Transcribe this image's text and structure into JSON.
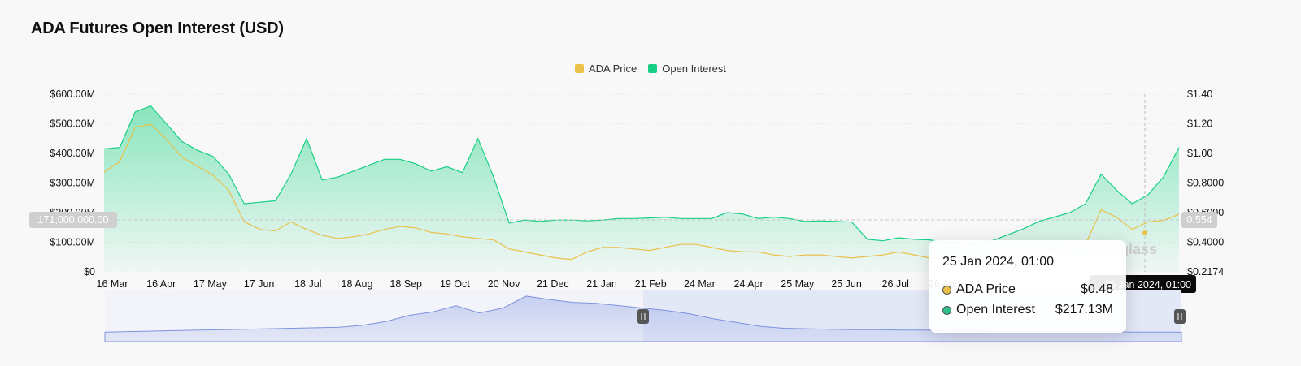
{
  "title": "ADA Futures Open Interest (USD)",
  "legend": [
    {
      "label": "ADA Price",
      "color": "#e9c14b"
    },
    {
      "label": "Open Interest",
      "color": "#19cf85"
    }
  ],
  "crosshair": {
    "left_label": "171,000,000.00",
    "right_label": "0.554",
    "x_label": "25 Jan 2024, 01:00"
  },
  "tooltip": {
    "date": "25 Jan 2024, 01:00",
    "rows": [
      {
        "label": "ADA Price",
        "value": "$0.48",
        "color": "#e9c14b"
      },
      {
        "label": "Open Interest",
        "value": "$217.13M",
        "color": "#2fc08a"
      }
    ]
  },
  "watermark": "coinglass",
  "chart_data": {
    "type": "area",
    "title": "ADA Futures Open Interest (USD)",
    "x_ticks": [
      "16 Mar",
      "16 Apr",
      "17 May",
      "17 Jun",
      "18 Jul",
      "18 Aug",
      "18 Sep",
      "19 Oct",
      "20 Nov",
      "21 Dec",
      "21 Jan",
      "21 Feb",
      "24 Mar",
      "24 Apr",
      "25 May",
      "25 Jun",
      "26 Jul",
      "26 Aug",
      "",
      "",
      "",
      ""
    ],
    "y_left": {
      "ticks": [
        "$0",
        "$100.00M",
        "$200.00M",
        "$300.00M",
        "$400.00M",
        "$500.00M",
        "$600.00M"
      ],
      "range": [
        0,
        600000000
      ]
    },
    "y_right": {
      "ticks": [
        "$0.2174",
        "$0.4000",
        "$0.6000",
        "$0.8000",
        "$1.00",
        "$1.20",
        "$1.40"
      ],
      "range": [
        0.2174,
        1.4
      ]
    },
    "series": [
      {
        "name": "Open Interest",
        "axis": "left",
        "unit": "USD millions",
        "color": "#19cf85",
        "values": [
          415,
          420,
          540,
          560,
          500,
          440,
          410,
          390,
          330,
          230,
          235,
          240,
          330,
          450,
          310,
          320,
          340,
          360,
          380,
          380,
          365,
          340,
          355,
          335,
          450,
          320,
          165,
          175,
          170,
          175,
          175,
          172,
          175,
          180,
          180,
          182,
          185,
          180,
          180,
          180,
          200,
          195,
          180,
          185,
          180,
          170,
          172,
          170,
          168,
          110,
          105,
          115,
          110,
          108,
          100,
          98,
          95,
          105,
          125,
          145,
          170,
          185,
          200,
          230,
          330,
          275,
          230,
          260,
          320,
          420
        ]
      },
      {
        "name": "ADA Price",
        "axis": "right",
        "unit": "USD",
        "color": "#e9c14b",
        "values": [
          0.88,
          0.95,
          1.18,
          1.2,
          1.1,
          0.98,
          0.92,
          0.86,
          0.76,
          0.55,
          0.5,
          0.49,
          0.55,
          0.5,
          0.46,
          0.44,
          0.45,
          0.47,
          0.5,
          0.52,
          0.51,
          0.48,
          0.47,
          0.45,
          0.44,
          0.43,
          0.37,
          0.35,
          0.33,
          0.31,
          0.3,
          0.35,
          0.38,
          0.38,
          0.37,
          0.36,
          0.38,
          0.4,
          0.4,
          0.38,
          0.36,
          0.35,
          0.35,
          0.33,
          0.32,
          0.33,
          0.33,
          0.32,
          0.31,
          0.32,
          0.33,
          0.35,
          0.33,
          0.31,
          0.31,
          0.32,
          0.31,
          0.32,
          0.34,
          0.35,
          0.36,
          0.37,
          0.38,
          0.4,
          0.63,
          0.58,
          0.5,
          0.55,
          0.56,
          0.6
        ]
      }
    ],
    "navigator": {
      "values": [
        0.2,
        0.21,
        0.22,
        0.23,
        0.24,
        0.25,
        0.26,
        0.27,
        0.28,
        0.29,
        0.3,
        0.34,
        0.42,
        0.55,
        0.62,
        0.75,
        0.6,
        0.7,
        0.95,
        0.88,
        0.82,
        0.8,
        0.75,
        0.7,
        0.65,
        0.58,
        0.48,
        0.4,
        0.32,
        0.28,
        0.27,
        0.26,
        0.25,
        0.25,
        0.24,
        0.24,
        0.23,
        0.23,
        0.22,
        0.22,
        0.22,
        0.21,
        0.21,
        0.21,
        0.2,
        0.2,
        0.2
      ]
    },
    "grid": true,
    "legend_position": "top-center"
  }
}
